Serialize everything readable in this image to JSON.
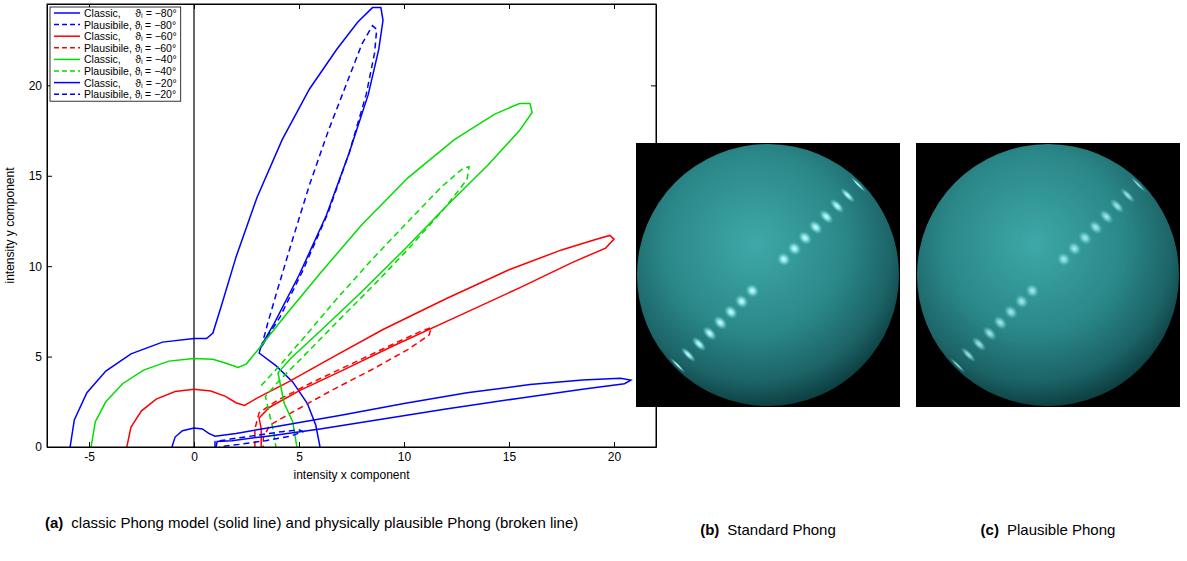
{
  "chart_data": {
    "type": "line",
    "xlabel": "intensity x component",
    "ylabel": "intensity y component",
    "xlim": [
      -7,
      22
    ],
    "ylim": [
      0,
      24.5
    ],
    "xticks": [
      -5,
      0,
      5,
      10,
      15,
      20
    ],
    "yticks": [
      0,
      5,
      10,
      15,
      20
    ],
    "vline": 0,
    "legend": "upper left",
    "caption": {
      "label": "(a)",
      "text": "classic Phong model (solid line) and physically plausible Phong (broken line)"
    },
    "series": [
      {
        "name": "Classic,     ϑᵢ = −80°",
        "color": "#0000ff",
        "line_style": "solid",
        "x": [
          -5.9,
          -5.7,
          -5.1,
          -4.2,
          -3.0,
          -1.5,
          0,
          0.6,
          0.9,
          1.3,
          2.0,
          3.0,
          4.2,
          5.5,
          6.8,
          7.8,
          8.5,
          8.9,
          9.0,
          8.8,
          8.3,
          7.4,
          6.3,
          5.0,
          3.8,
          3.2,
          3.1,
          3.9,
          4.7,
          5.4,
          5.8,
          6.0
        ],
        "values": [
          0,
          1.5,
          3.0,
          4.2,
          5.15,
          5.8,
          6.0,
          6.0,
          6.3,
          7.8,
          10.5,
          13.8,
          17.0,
          19.8,
          22.0,
          23.5,
          24.3,
          24.3,
          23.6,
          22.0,
          19.5,
          16.3,
          12.8,
          9.5,
          6.8,
          5.6,
          5.2,
          4.5,
          3.6,
          2.4,
          1.2,
          0
        ]
      },
      {
        "name": "Plausibile, ϑᵢ = −80°",
        "color": "#0000ff",
        "line_style": "dashed",
        "x": [
          3.2,
          3.5,
          4.0,
          4.7,
          5.5,
          6.4,
          7.3,
          8.0,
          8.5,
          8.7,
          8.6,
          8.2,
          7.4,
          6.4,
          5.2,
          4.1,
          3.4,
          3.2
        ],
        "values": [
          5.5,
          6.8,
          8.8,
          11.5,
          14.5,
          17.5,
          20.2,
          22.3,
          23.3,
          23.1,
          21.8,
          19.5,
          16.3,
          13.0,
          9.8,
          7.2,
          5.9,
          5.5
        ]
      },
      {
        "name": "Classic,     ϑᵢ = −60°",
        "color": "#ff0000",
        "line_style": "solid",
        "x": [
          -3.2,
          -3.0,
          -2.5,
          -1.8,
          -0.9,
          0,
          0.8,
          1.5,
          2.0,
          2.4,
          3.0,
          4.5,
          6.5,
          9.0,
          12,
          15,
          17.5,
          19.2,
          19.8,
          20.0,
          19.6,
          18,
          15.5,
          12.5,
          9.5,
          7,
          5,
          3.6,
          3.1,
          3.2,
          3.2
        ],
        "values": [
          0,
          1.1,
          2.0,
          2.65,
          3.07,
          3.2,
          3.1,
          2.8,
          2.45,
          2.3,
          2.7,
          3.6,
          4.9,
          6.5,
          8.2,
          9.8,
          10.9,
          11.5,
          11.7,
          11.5,
          11.0,
          10.2,
          8.8,
          7.2,
          5.6,
          4.2,
          3.1,
          2.2,
          1.6,
          1.0,
          0
        ]
      },
      {
        "name": "Plausibile, ϑᵢ = −60°",
        "color": "#ff0000",
        "line_style": "dashed",
        "x": [
          2.9,
          2.9,
          3.1,
          4.0,
          5.5,
          7.5,
          9.5,
          10.8,
          11.3,
          11.2,
          10.2,
          8.5,
          6.5,
          4.8,
          3.6,
          3.3,
          3.3
        ],
        "values": [
          0,
          1.0,
          1.9,
          2.6,
          3.5,
          4.6,
          5.7,
          6.4,
          6.6,
          6.2,
          5.4,
          4.3,
          3.1,
          2.0,
          1.2,
          0.5,
          0
        ]
      },
      {
        "name": "Classic,     ϑᵢ = −40°",
        "color": "#00dd00",
        "line_style": "solid",
        "x": [
          -4.9,
          -4.7,
          -4.2,
          -3.4,
          -2.4,
          -1.2,
          0,
          0.9,
          1.6,
          2.1,
          2.5,
          3.2,
          4.3,
          6,
          8,
          10.2,
          12.4,
          14.3,
          15.5,
          16.0,
          16.1,
          15.5,
          14,
          12,
          10,
          8,
          6,
          4.6,
          4.0,
          4.3,
          4.7,
          4.9
        ],
        "values": [
          0,
          1.4,
          2.5,
          3.5,
          4.25,
          4.75,
          4.9,
          4.85,
          4.6,
          4.4,
          4.6,
          5.6,
          7.2,
          9.6,
          12.3,
          14.9,
          17.0,
          18.4,
          19.0,
          19.0,
          18.5,
          17.5,
          15.6,
          13.3,
          10.9,
          8.6,
          6.4,
          4.9,
          4.1,
          2.4,
          1.4,
          0
        ]
      },
      {
        "name": "Plausibile, ϑᵢ = −40°",
        "color": "#00dd00",
        "line_style": "dashed",
        "x": [
          3.2,
          4.0,
          5.2,
          6.8,
          8.5,
          10.3,
          11.8,
          12.8,
          13.1,
          13.0,
          12.0,
          10.4,
          8.6,
          6.8,
          5.2,
          4.0,
          3.4,
          3.6,
          3.8,
          3.9
        ],
        "values": [
          3.4,
          4.4,
          6.0,
          8.2,
          10.4,
          12.6,
          14.4,
          15.4,
          15.5,
          14.8,
          13.3,
          11.2,
          9.0,
          6.9,
          5.0,
          3.6,
          2.8,
          1.8,
          0.8,
          0
        ]
      },
      {
        "name": "Classic,     ϑᵢ = −20°",
        "color": "#0000ff",
        "line_style": "solid",
        "x": [
          -1.05,
          -0.9,
          -0.55,
          0,
          0.4,
          0.7,
          1.0,
          2,
          4,
          7,
          10,
          13,
          16,
          18.5,
          20.3,
          20.8,
          20.5,
          18.5,
          15.5,
          12,
          9,
          6,
          3.5,
          1.8,
          1.1,
          1.05
        ],
        "values": [
          0,
          0.55,
          0.9,
          1.05,
          1.0,
          0.75,
          0.6,
          0.75,
          1.15,
          1.75,
          2.4,
          3.0,
          3.45,
          3.7,
          3.8,
          3.7,
          3.5,
          3.2,
          2.7,
          2.1,
          1.55,
          1.0,
          0.6,
          0.35,
          0.3,
          0
        ]
      },
      {
        "name": "Plausibile, ϑᵢ = −20°",
        "color": "#0000ff",
        "line_style": "dashed",
        "x": [
          1.0,
          1.0,
          1.8,
          3,
          4.2,
          5.0,
          5.2,
          4.6,
          3.4,
          2.2,
          1.5,
          1.2
        ],
        "values": [
          0,
          0.3,
          0.45,
          0.65,
          0.85,
          0.95,
          0.85,
          0.6,
          0.35,
          0.15,
          0.05,
          0
        ]
      }
    ]
  },
  "images": [
    {
      "label": "(b)",
      "caption": "Standard Phong"
    },
    {
      "label": "(c)",
      "caption": "Plausible Phong"
    }
  ]
}
